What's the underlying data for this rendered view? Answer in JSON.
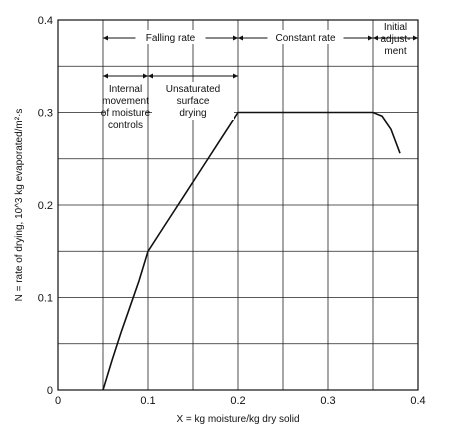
{
  "chart_data": {
    "type": "line",
    "title": "",
    "xlabel": "X = kg moisture/kg dry solid",
    "ylabel": "N = rate of drying, 10^3 kg evaporated/m²·s",
    "xlim": [
      0,
      0.4
    ],
    "ylim": [
      0,
      0.4
    ],
    "x_ticks": [
      "0",
      "0.1",
      "0.2",
      "0.3",
      "0.4"
    ],
    "y_ticks": [
      "0",
      "0.1",
      "0.2",
      "0.3",
      "0.4"
    ],
    "grid": true,
    "series": [
      {
        "x": [
          0.05,
          0.06,
          0.07,
          0.08,
          0.09,
          0.1,
          0.12,
          0.14,
          0.16,
          0.18,
          0.2,
          0.25,
          0.3,
          0.35,
          0.36,
          0.37,
          0.38
        ],
        "y": [
          0.0,
          0.032,
          0.062,
          0.09,
          0.118,
          0.15,
          0.18,
          0.21,
          0.24,
          0.27,
          0.3,
          0.3,
          0.3,
          0.3,
          0.296,
          0.282,
          0.256
        ]
      }
    ],
    "annotations": {
      "falling_rate": "Falling rate",
      "constant_rate": "Constant rate",
      "initial_adjustment_1": "Initial",
      "initial_adjustment_2": "adjust-",
      "initial_adjustment_3": "ment",
      "internal_1": "Internal",
      "internal_2": "movement",
      "internal_3": "of moisture",
      "internal_4": "controls",
      "unsat_1": "Unsaturated",
      "unsat_2": "surface",
      "unsat_3": "drying"
    }
  }
}
